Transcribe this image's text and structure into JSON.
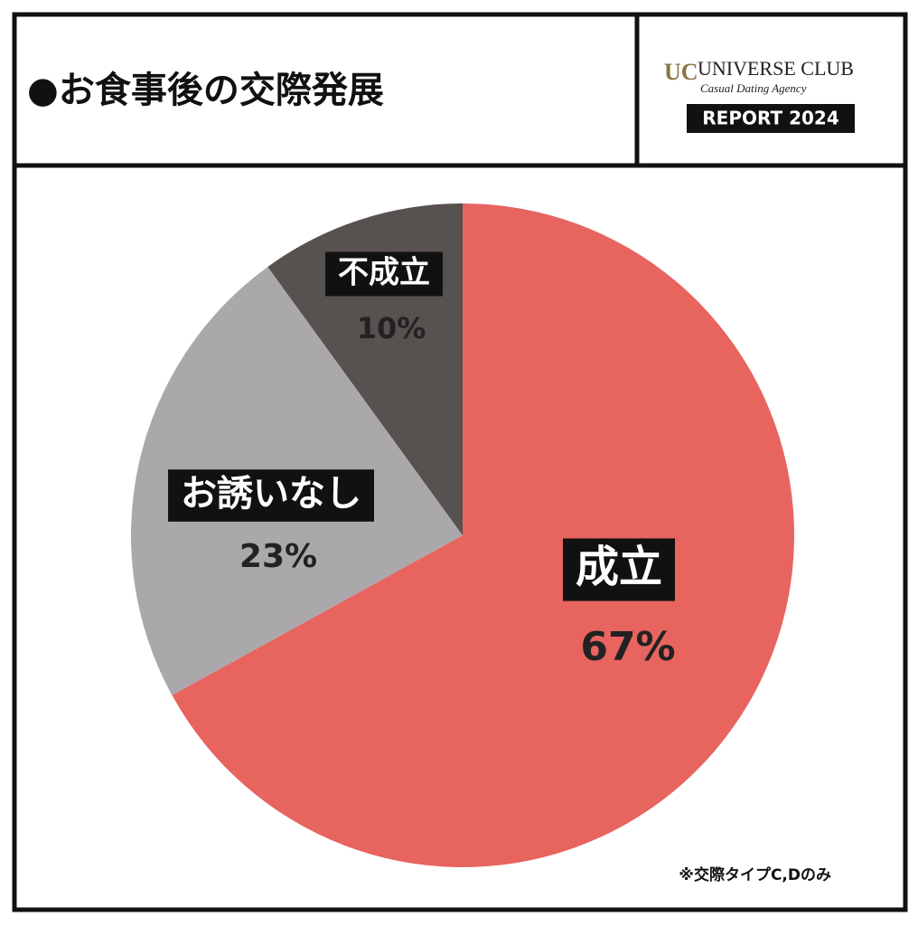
{
  "brand": {
    "mark": "UC",
    "name": "UNIVERSE CLUB",
    "tagline": "Casual Dating Agency",
    "badge": "REPORT 2024"
  },
  "chart_data": {
    "type": "pie",
    "title": "●お食事後の交際発展",
    "categories": [
      "成立",
      "お誘いなし",
      "不成立"
    ],
    "values": [
      67,
      23,
      10
    ],
    "value_labels": [
      "67%",
      "23%",
      "10%"
    ],
    "colors": [
      "#e8645f",
      "#aaa8ab",
      "#57514f"
    ],
    "note": "※交際タイプC,Dのみ"
  }
}
